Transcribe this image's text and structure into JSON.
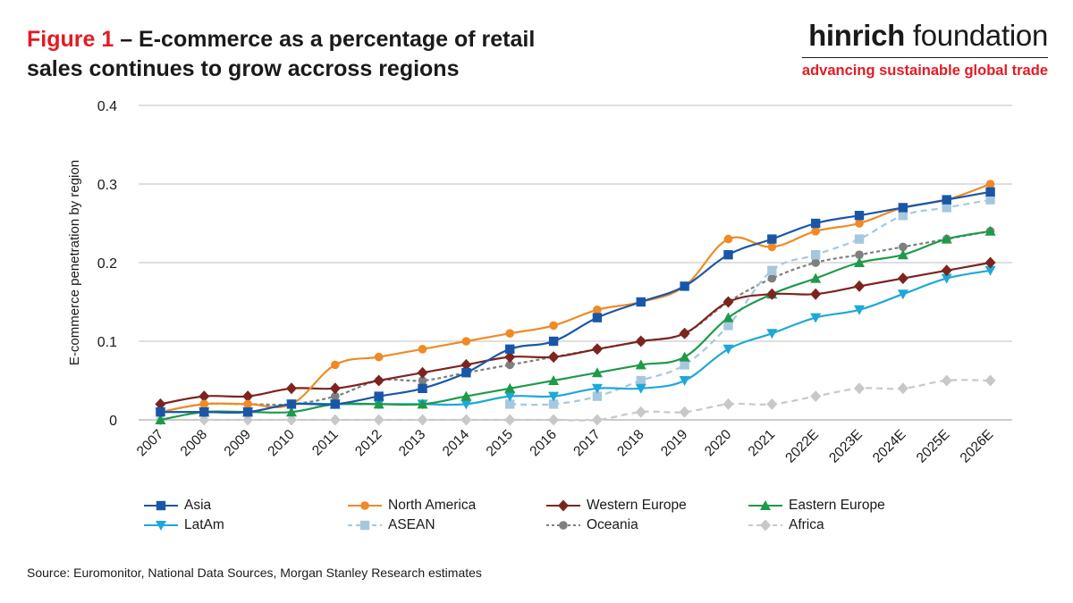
{
  "header": {
    "figure_label": "Figure 1",
    "title_rest": " – E-commerce as a percentage of retail",
    "title_line2": "sales continues to grow accross regions"
  },
  "brand": {
    "name_bold": "hinrich",
    "name_rest": " foundation",
    "tagline": "advancing sustainable global trade"
  },
  "source": "Source: Euromonitor, National Data Sources, Morgan Stanley Research estimates",
  "colors": {
    "accent": "#e31b23"
  },
  "chart_data": {
    "type": "line",
    "title": "",
    "xlabel": "",
    "ylabel": "E-commerce penetration by region",
    "ylim": [
      0,
      0.4
    ],
    "yticks": [
      "0",
      "0.1",
      "0.2",
      "0.3",
      "0.4"
    ],
    "grid": "horizontal",
    "legend_position": "bottom",
    "categories": [
      "2007",
      "2008",
      "2009",
      "2010",
      "2011",
      "2012",
      "2013",
      "2014",
      "2015",
      "2016",
      "2017",
      "2018",
      "2019",
      "2020",
      "2021",
      "2022E",
      "2023E",
      "2024E",
      "2025E",
      "2026E"
    ],
    "series": [
      {
        "name": "Asia",
        "color": "#1a56a8",
        "marker": "square",
        "dash": "solid",
        "values": [
          0.01,
          0.01,
          0.01,
          0.02,
          0.02,
          0.03,
          0.04,
          0.06,
          0.09,
          0.1,
          0.13,
          0.15,
          0.17,
          0.21,
          0.23,
          0.25,
          0.26,
          0.27,
          0.28,
          0.29
        ]
      },
      {
        "name": "North America",
        "color": "#f08a24",
        "marker": "circle",
        "dash": "solid",
        "values": [
          0.01,
          0.02,
          0.02,
          0.02,
          0.07,
          0.08,
          0.09,
          0.1,
          0.11,
          0.12,
          0.14,
          0.15,
          0.17,
          0.23,
          0.22,
          0.24,
          0.25,
          0.27,
          0.28,
          0.3
        ]
      },
      {
        "name": "Western Europe",
        "color": "#7b2420",
        "marker": "diamond",
        "dash": "solid",
        "values": [
          0.02,
          0.03,
          0.03,
          0.04,
          0.04,
          0.05,
          0.06,
          0.07,
          0.08,
          0.08,
          0.09,
          0.1,
          0.11,
          0.15,
          0.16,
          0.16,
          0.17,
          0.18,
          0.19,
          0.2
        ]
      },
      {
        "name": "Eastern Europe",
        "color": "#1e9a4a",
        "marker": "triangle",
        "dash": "solid",
        "values": [
          0.0,
          0.01,
          0.01,
          0.01,
          0.02,
          0.02,
          0.02,
          0.03,
          0.04,
          0.05,
          0.06,
          0.07,
          0.08,
          0.13,
          0.16,
          0.18,
          0.2,
          0.21,
          0.23,
          0.24
        ]
      },
      {
        "name": "LatAm",
        "color": "#1ea8d8",
        "marker": "triangle-down",
        "dash": "solid",
        "values": [
          0.01,
          0.01,
          0.01,
          0.02,
          0.02,
          0.02,
          0.02,
          0.02,
          0.03,
          0.03,
          0.04,
          0.04,
          0.05,
          0.09,
          0.11,
          0.13,
          0.14,
          0.16,
          0.18,
          0.19
        ]
      },
      {
        "name": "ASEAN",
        "color": "#a6c8de",
        "marker": "square",
        "dash": "dashed",
        "values": [
          null,
          null,
          null,
          null,
          null,
          null,
          null,
          null,
          0.02,
          0.02,
          0.03,
          0.05,
          0.07,
          0.12,
          0.19,
          0.21,
          0.23,
          0.26,
          0.27,
          0.28
        ]
      },
      {
        "name": "Oceania",
        "color": "#7f7f7f",
        "marker": "circle",
        "dash": "dotted",
        "values": [
          0.01,
          0.02,
          0.02,
          0.02,
          0.03,
          0.05,
          0.05,
          0.06,
          0.07,
          0.08,
          0.09,
          0.1,
          0.11,
          0.15,
          0.18,
          0.2,
          0.21,
          0.22,
          0.23,
          0.24
        ]
      },
      {
        "name": "Africa",
        "color": "#c8c8c8",
        "marker": "diamond",
        "dash": "dashed",
        "values": [
          0.0,
          0.0,
          0.0,
          0.0,
          0.0,
          0.0,
          0.0,
          0.0,
          0.0,
          0.0,
          0.0,
          0.01,
          0.01,
          0.02,
          0.02,
          0.03,
          0.04,
          0.04,
          0.05,
          0.05
        ]
      }
    ]
  }
}
